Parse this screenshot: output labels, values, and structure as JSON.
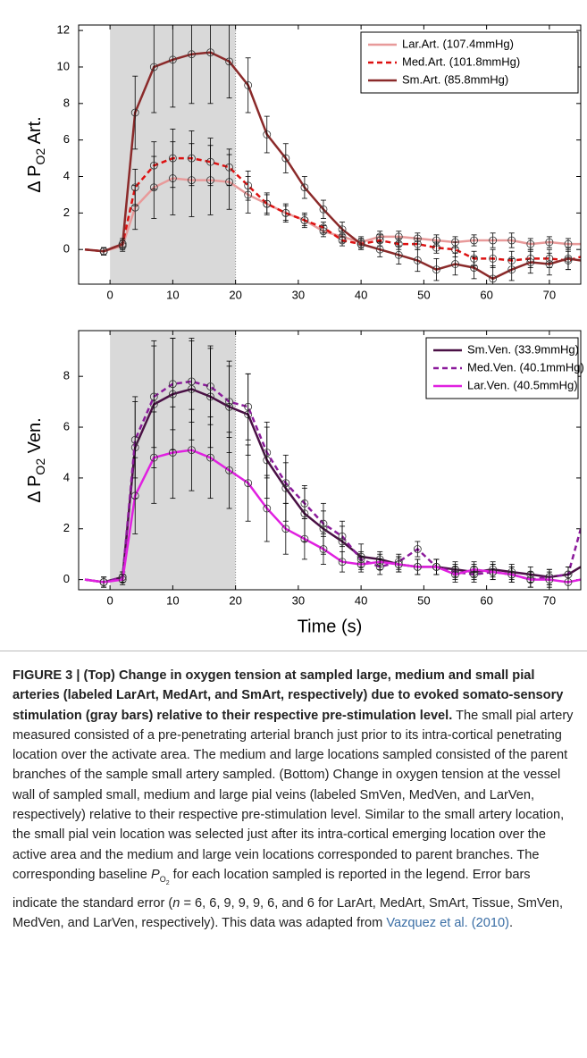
{
  "chart_data": [
    {
      "type": "line",
      "ylabel": [
        "Δ P",
        "O2",
        " Art."
      ],
      "xlim": [
        -5,
        75
      ],
      "ylim": [
        -1.9,
        12.3
      ],
      "xticks": [
        0,
        10,
        20,
        30,
        40,
        50,
        60,
        70
      ],
      "yticks": [
        0,
        2,
        4,
        6,
        8,
        10,
        12
      ],
      "shaded_span": [
        0,
        20
      ],
      "legend": "upper right",
      "marker": "o",
      "x": [
        -4,
        -1,
        2,
        4,
        7,
        10,
        13,
        16,
        19,
        22,
        25,
        28,
        31,
        34,
        37,
        40,
        43,
        46,
        49,
        52,
        55,
        58,
        61,
        64,
        67,
        70,
        73,
        75
      ],
      "series": [
        {
          "name": "Lar.Art. (107.4mmHg)",
          "color": "#e89a9a",
          "dash": false,
          "values": [
            0,
            -0.1,
            0.2,
            2.3,
            3.4,
            3.9,
            3.8,
            3.8,
            3.7,
            3,
            2.5,
            2,
            1.6,
            1,
            0.7,
            0.4,
            0.7,
            0.7,
            0.6,
            0.5,
            0.4,
            0.5,
            0.5,
            0.5,
            0.3,
            0.4,
            0.3,
            0.3
          ],
          "errors": [
            null,
            0.2,
            0.3,
            1.2,
            1.7,
            2,
            2,
            1.9,
            1.5,
            1,
            0.6,
            0.5,
            0.4,
            0.3,
            0.3,
            0.3,
            0.3,
            0.3,
            0.3,
            0.3,
            0.3,
            0.3,
            0.4,
            0.4,
            0.3,
            0.3,
            0.3,
            null
          ]
        },
        {
          "name": "Med.Art. (101.8mmHg)",
          "color": "#dd1111",
          "dash": true,
          "values": [
            0,
            -0.1,
            0.3,
            3.4,
            4.6,
            5,
            5,
            4.8,
            4.5,
            3.5,
            2.5,
            2,
            1.6,
            1.2,
            0.5,
            0.3,
            0.5,
            0.3,
            0.3,
            0.1,
            0,
            -0.5,
            -0.5,
            -0.6,
            -0.5,
            -0.5,
            -0.6,
            -0.4
          ],
          "errors": [
            null,
            0.2,
            0.2,
            1,
            1.3,
            1.6,
            1.5,
            1.3,
            1,
            0.8,
            0.5,
            0.4,
            0.3,
            0.3,
            0.3,
            0.3,
            0.3,
            0.3,
            0.3,
            0.3,
            0.4,
            0.4,
            0.5,
            0.5,
            0.5,
            0.5,
            0.5,
            null
          ]
        },
        {
          "name": "Sm.Art. (85.8mmHg)",
          "color": "#8b2a2a",
          "dash": false,
          "values": [
            0,
            -0.1,
            0.3,
            7.5,
            10,
            10.4,
            10.7,
            10.8,
            10.3,
            9,
            6.3,
            5,
            3.4,
            2.2,
            1.1,
            0.3,
            0,
            -0.3,
            -0.6,
            -1.1,
            -0.8,
            -1,
            -1.6,
            -1.1,
            -0.7,
            -0.8,
            -0.5,
            -0.6
          ],
          "errors": [
            null,
            0.2,
            0.3,
            2,
            2.5,
            2.6,
            2.7,
            2.8,
            2,
            1.5,
            1,
            0.8,
            0.6,
            0.5,
            0.4,
            0.3,
            0.4,
            0.5,
            0.6,
            0.6,
            0.6,
            0.6,
            0.7,
            0.6,
            0.6,
            0.6,
            0.6,
            null
          ]
        }
      ]
    },
    {
      "type": "line",
      "ylabel": [
        "Δ P",
        "O2",
        " Ven."
      ],
      "xlabel": "Time (s)",
      "xlim": [
        -5,
        75
      ],
      "ylim": [
        -0.4,
        9.8
      ],
      "xticks": [
        0,
        10,
        20,
        30,
        40,
        50,
        60,
        70
      ],
      "yticks": [
        0,
        2,
        4,
        6,
        8
      ],
      "shaded_span": [
        0,
        20
      ],
      "legend": "upper right",
      "marker": "o",
      "x": [
        -4,
        -1,
        2,
        4,
        7,
        10,
        13,
        16,
        19,
        22,
        25,
        28,
        31,
        34,
        37,
        40,
        43,
        46,
        49,
        52,
        55,
        58,
        61,
        64,
        67,
        70,
        73,
        75
      ],
      "series": [
        {
          "name": "Sm.Ven. (33.9mmHg)",
          "color": "#4a1045",
          "dash": false,
          "values": [
            0,
            -0.1,
            0.1,
            5.2,
            6.9,
            7.3,
            7.5,
            7.2,
            6.8,
            6.5,
            4.7,
            3.6,
            2.6,
            2,
            1.5,
            0.9,
            0.8,
            0.6,
            0.5,
            0.5,
            0.4,
            0.3,
            0.4,
            0.3,
            0.2,
            0.1,
            0.2,
            0.5
          ],
          "errors": [
            null,
            0.2,
            0.2,
            2,
            2.5,
            2.2,
            2,
            2,
            1.8,
            1.6,
            1.5,
            1.3,
            1.1,
            1,
            0.8,
            0.5,
            0.3,
            0.3,
            0.3,
            0.3,
            0.3,
            0.3,
            0.3,
            0.3,
            0.3,
            0.3,
            0.3,
            null
          ]
        },
        {
          "name": "Med.Ven. (40.1mmHg)",
          "color": "#8b1a9b",
          "dash": true,
          "values": [
            0,
            -0.1,
            0.1,
            5.5,
            7.2,
            7.7,
            7.8,
            7.6,
            7,
            6.8,
            5,
            3.8,
            3,
            2.2,
            1.7,
            0.8,
            0.5,
            0.7,
            1.2,
            0.5,
            0.3,
            0.2,
            0.3,
            0.2,
            0,
            0.1,
            0.2,
            2
          ],
          "errors": [
            null,
            0.2,
            0.2,
            1.5,
            2,
            1.8,
            1.6,
            1.5,
            1.4,
            1.3,
            1,
            0.8,
            0.6,
            0.5,
            0.4,
            0.3,
            0.3,
            0.3,
            0.3,
            0.3,
            0.3,
            0.3,
            0.3,
            0.3,
            0.3,
            0.3,
            0.3,
            null
          ]
        },
        {
          "name": "Lar.Ven. (40.5mmHg)",
          "color": "#e020e0",
          "dash": false,
          "values": [
            0,
            -0.1,
            0,
            3.3,
            4.8,
            5,
            5.1,
            4.8,
            4.3,
            3.8,
            2.8,
            2,
            1.6,
            1.2,
            0.7,
            0.6,
            0.7,
            0.6,
            0.5,
            0.5,
            0.2,
            0.4,
            0.3,
            0.2,
            0,
            0,
            -0.1,
            0
          ],
          "errors": [
            null,
            0.2,
            0.2,
            1.5,
            1.8,
            1.8,
            1.6,
            1.6,
            1.5,
            1.5,
            1.3,
            1,
            0.8,
            0.6,
            0.4,
            0.3,
            0.3,
            0.3,
            0.3,
            0.3,
            0.3,
            0.3,
            0.3,
            0.3,
            0.3,
            0.3,
            0.3,
            null
          ]
        }
      ]
    }
  ],
  "caption": {
    "label": "FIGURE 3 |",
    "bold": " (Top) Change in oxygen tension at sampled large, medium and small pial arteries (labeled LarArt, MedArt, and SmArt, respectively) due to evoked somato-sensory stimulation (gray bars) relative to their respective pre-stimulation level.",
    "parts": [
      " The small pial artery measured consisted of a pre-penetrating arterial branch just prior to its intra-cortical penetrating location over the activate area. The medium and large locations sampled consisted of the parent branches of the sample small artery sampled. (Bottom) Change in oxygen tension at the vessel wall of sampled small, medium and large pial veins (labeled SmVen, MedVen, and LarVen, respectively) relative to their respective pre-stimulation level. Similar to the small artery location, the small pial vein location was selected just after its intra-cortical emerging location over the active area and the medium and large vein locations corresponded to parent branches. The corresponding baseline ",
      "P",
      "O",
      "2",
      " for each location sampled is reported in the legend. Error bars indicate the standard error (",
      "n",
      " = 6, 6, 9, 9, 9, 6, and 6 for LarArt, MedArt, SmArt, Tissue, SmVen, MedVen, and LarVen, respectively). This data was adapted from ",
      "Vazquez et al. (2010)",
      "."
    ]
  }
}
